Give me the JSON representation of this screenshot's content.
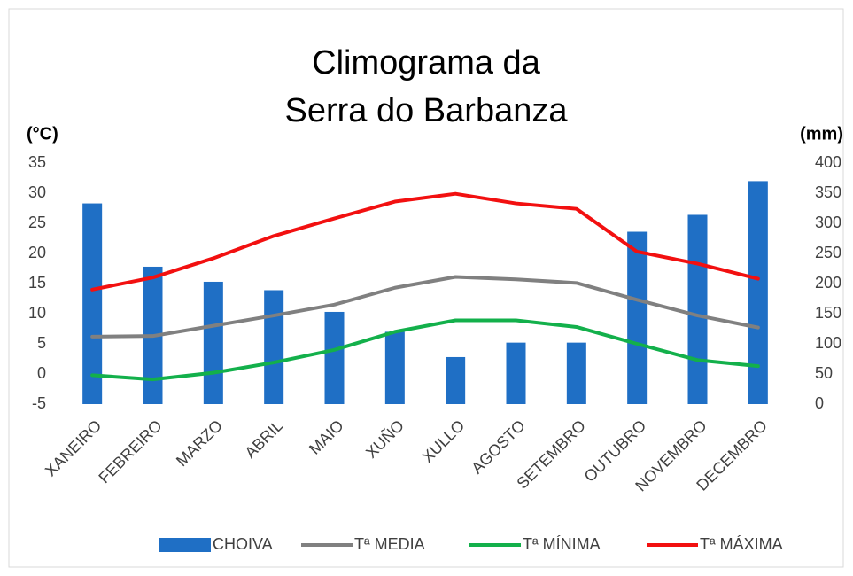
{
  "chart_data": {
    "type": "bar-line",
    "title": [
      "Climograma da",
      "Serra do Barbanza"
    ],
    "y_label": "(°C)",
    "y2_label": "(mm)",
    "categories": [
      "XANEIRO",
      "FEBREIRO",
      "MARZO",
      "ABRIL",
      "MAIO",
      "XUÑO",
      "XULLO",
      "AGOSTO",
      "SETEMBRO",
      "OUTUBRO",
      "NOVEMBRO",
      "DECEMBRO"
    ],
    "series": [
      {
        "name": "CHOIVA",
        "type": "bar",
        "axis": "y2",
        "color": "#1f6fc5",
        "values": [
          333,
          228,
          203,
          189,
          153,
          120,
          78,
          102,
          102,
          286,
          314,
          370
        ]
      },
      {
        "name": "Tª MEDIA",
        "type": "line",
        "color": "#808080",
        "values": [
          6.2,
          6.3,
          8,
          9.7,
          11.5,
          14.3,
          16.1,
          15.7,
          15.1,
          12.3,
          9.7,
          7.7
        ]
      },
      {
        "name": "Tª MÍNIMA",
        "type": "line",
        "color": "#13b04b",
        "values": [
          -0.2,
          -0.9,
          0.2,
          1.9,
          4,
          7,
          8.9,
          8.9,
          7.8,
          5,
          2.3,
          1.3
        ]
      },
      {
        "name": "Tª MÁXIMA",
        "type": "line",
        "color": "#f21010",
        "values": [
          14,
          16,
          19.2,
          22.9,
          25.8,
          28.6,
          29.9,
          28.3,
          27.4,
          20.3,
          18.3,
          15.8
        ]
      }
    ],
    "ylim": [
      -5,
      35
    ],
    "yticks": [
      -5,
      0,
      5,
      10,
      15,
      20,
      25,
      30,
      35
    ],
    "y2lim": [
      0,
      400
    ],
    "y2ticks": [
      0,
      50,
      100,
      150,
      200,
      250,
      300,
      350,
      400
    ],
    "grid": false,
    "legend": "bottom"
  }
}
